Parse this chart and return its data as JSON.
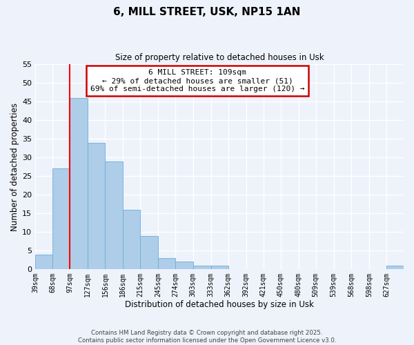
{
  "title": "6, MILL STREET, USK, NP15 1AN",
  "subtitle": "Size of property relative to detached houses in Usk",
  "xlabel": "Distribution of detached houses by size in Usk",
  "ylabel": "Number of detached properties",
  "bar_color": "#aecde8",
  "bar_edge_color": "#6aafd6",
  "background_color": "#eef2fb",
  "grid_color": "#ffffff",
  "bins": [
    39,
    68,
    97,
    127,
    156,
    186,
    215,
    245,
    274,
    303,
    333,
    362,
    392,
    421,
    450,
    480,
    509,
    539,
    568,
    598,
    627
  ],
  "counts": [
    4,
    27,
    46,
    34,
    29,
    16,
    9,
    3,
    2,
    1,
    1,
    0,
    0,
    0,
    0,
    0,
    0,
    0,
    0,
    0,
    1
  ],
  "tick_labels": [
    "39sqm",
    "68sqm",
    "97sqm",
    "127sqm",
    "156sqm",
    "186sqm",
    "215sqm",
    "245sqm",
    "274sqm",
    "303sqm",
    "333sqm",
    "362sqm",
    "392sqm",
    "421sqm",
    "450sqm",
    "480sqm",
    "509sqm",
    "539sqm",
    "568sqm",
    "598sqm",
    "627sqm"
  ],
  "red_line_x": 97,
  "ylim": [
    0,
    55
  ],
  "yticks": [
    0,
    5,
    10,
    15,
    20,
    25,
    30,
    35,
    40,
    45,
    50,
    55
  ],
  "annotation_title": "6 MILL STREET: 109sqm",
  "annotation_line1": "← 29% of detached houses are smaller (51)",
  "annotation_line2": "69% of semi-detached houses are larger (120) →",
  "annotation_box_color": "#ffffff",
  "annotation_box_edge": "#cc0000",
  "footer_line1": "Contains HM Land Registry data © Crown copyright and database right 2025.",
  "footer_line2": "Contains public sector information licensed under the Open Government Licence v3.0."
}
